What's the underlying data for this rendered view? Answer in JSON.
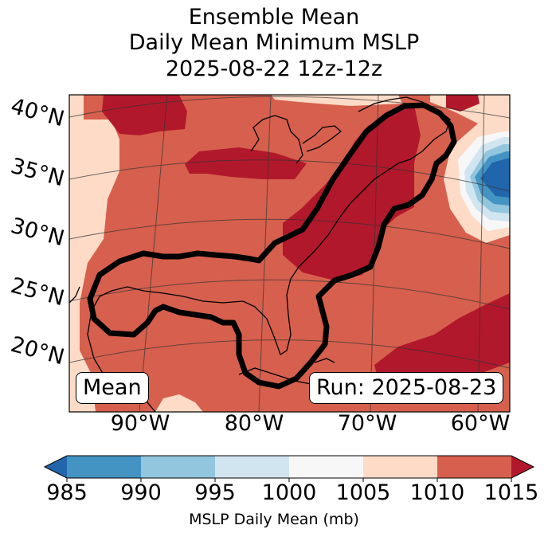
{
  "title": {
    "line1": "Ensemble Mean",
    "line2": "Daily Mean Minimum MSLP",
    "line3": "2025-08-22 12z-12z"
  },
  "map": {
    "lat_labels": [
      "40°N",
      "35°N",
      "30°N",
      "25°N",
      "20°N"
    ],
    "lon_labels": [
      "90°W",
      "80°W",
      "70°W",
      "60°W"
    ],
    "mean_label": "Mean",
    "run_label": "Run: 2025-08-23",
    "contour_color": "#000000"
  },
  "colorbar": {
    "ticks": [
      "985",
      "990",
      "995",
      "1000",
      "1005",
      "1010",
      "1015"
    ],
    "label": "MSLP Daily Mean (mb)",
    "colors": [
      "#2166ac",
      "#4393c3",
      "#92c5de",
      "#d1e5f0",
      "#f7f7f7",
      "#fddbc7",
      "#d6604d",
      "#b2182b"
    ]
  }
}
